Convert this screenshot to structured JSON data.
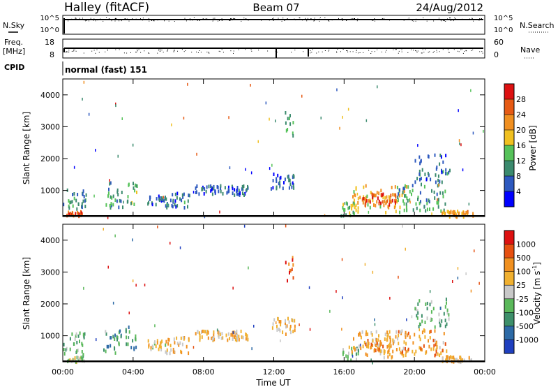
{
  "header": {
    "station": "Halley (fitACF)",
    "beam": "Beam 07",
    "date": "24/Aug/2012"
  },
  "status_panel": {
    "nsky_label": "N.Sky",
    "nsky_ticks": [
      "10^5",
      "10^0"
    ],
    "nsearch_label": "N.Search",
    "nsearch_ticks": [
      "10^5",
      "10^0"
    ],
    "freq_label_1": "Freq.",
    "freq_label_2": "[MHz]",
    "freq_ticks": [
      "18",
      "8"
    ],
    "nave_label": "Nave",
    "nave_ticks": [
      "60",
      "0"
    ],
    "cpid_label": "CPID",
    "cpid_text": "normal (fast) 151"
  },
  "chart_data": [
    {
      "type": "heatmap",
      "name": "power",
      "ylabel": "Slant Range [km]",
      "xlabel": "",
      "x_ticks": [
        "00:00",
        "04:00",
        "08:00",
        "12:00",
        "16:00",
        "20:00",
        "00:00"
      ],
      "xlim_hours": [
        0,
        24
      ],
      "y_ticks": [
        1000,
        2000,
        3000,
        4000
      ],
      "ylim": [
        180,
        4500
      ],
      "colorbar_label": "Power [dB]",
      "colorbar_ticks": [
        "4",
        "8",
        "12",
        "16",
        "20",
        "24",
        "28"
      ],
      "colorbar_colors": [
        "#0000ff",
        "#2d59bf",
        "#3b8a6e",
        "#56c25a",
        "#f0c020",
        "#f08f20",
        "#e65a14",
        "#dd1111"
      ],
      "echo_regions": [
        {
          "t": [
            0.0,
            1.3
          ],
          "r": [
            400,
            1150
          ],
          "level": 0.3
        },
        {
          "t": [
            0.2,
            1.2
          ],
          "r": [
            220,
            380
          ],
          "level": 0.8
        },
        {
          "t": [
            2.3,
            3.4
          ],
          "r": [
            500,
            1300
          ],
          "level": 0.3
        },
        {
          "t": [
            3.5,
            4.2
          ],
          "r": [
            600,
            1350
          ],
          "level": 0.4
        },
        {
          "t": [
            4.8,
            5.8
          ],
          "r": [
            600,
            900
          ],
          "level": 0.2
        },
        {
          "t": [
            5.8,
            7.2
          ],
          "r": [
            500,
            1000
          ],
          "level": 0.25
        },
        {
          "t": [
            7.5,
            10.5
          ],
          "r": [
            900,
            1200
          ],
          "level": 0.2
        },
        {
          "t": [
            11.8,
            13.2
          ],
          "r": [
            1100,
            1600
          ],
          "level": 0.2
        },
        {
          "t": [
            12.6,
            13.1
          ],
          "r": [
            2700,
            3600
          ],
          "level": 0.4
        },
        {
          "t": [
            15.8,
            16.8
          ],
          "r": [
            250,
            700
          ],
          "level": 0.45
        },
        {
          "t": [
            16.4,
            19.6
          ],
          "r": [
            350,
            1200
          ],
          "level": 0.6
        },
        {
          "t": [
            17.0,
            19.0
          ],
          "r": [
            550,
            950
          ],
          "level": 0.85
        },
        {
          "t": [
            19.0,
            21.8
          ],
          "r": [
            400,
            1250
          ],
          "level": 0.35
        },
        {
          "t": [
            21.5,
            23.3
          ],
          "r": [
            220,
            400
          ],
          "level": 0.65
        },
        {
          "t": [
            20.0,
            22.0
          ],
          "r": [
            1300,
            2200
          ],
          "level": 0.25
        }
      ]
    },
    {
      "type": "heatmap",
      "name": "velocity",
      "ylabel": "Slant Range [km]",
      "xlabel": "Time UT",
      "x_ticks": [
        "00:00",
        "04:00",
        "08:00",
        "12:00",
        "16:00",
        "20:00",
        "00:00"
      ],
      "xlim_hours": [
        0,
        24
      ],
      "y_ticks": [
        1000,
        2000,
        3000,
        4000
      ],
      "ylim": [
        180,
        4500
      ],
      "colorbar_label": "Velocity [m s",
      "colorbar_label_sup": "-1",
      "colorbar_label_end": "]",
      "colorbar_ticks": [
        "1000",
        "500",
        "100",
        "25",
        "-25",
        "-100",
        "-500",
        "-1000"
      ],
      "colorbar_colors": [
        "#1f3fbf",
        "#2d6aa6",
        "#3d8f6a",
        "#5ab85a",
        "#c8c8c8",
        "#f0b030",
        "#f09020",
        "#e65010",
        "#dd1111"
      ],
      "echo_regions": [
        {
          "t": [
            0.0,
            1.3
          ],
          "r": [
            400,
            1150
          ],
          "level": 0.35
        },
        {
          "t": [
            0.2,
            1.2
          ],
          "r": [
            220,
            380
          ],
          "level": 0.5
        },
        {
          "t": [
            2.3,
            3.4
          ],
          "r": [
            500,
            1300
          ],
          "level": 0.3
        },
        {
          "t": [
            3.5,
            4.2
          ],
          "r": [
            600,
            1350
          ],
          "level": 0.3
        },
        {
          "t": [
            4.8,
            5.8
          ],
          "r": [
            600,
            900
          ],
          "level": 0.55
        },
        {
          "t": [
            5.8,
            7.2
          ],
          "r": [
            500,
            1000
          ],
          "level": 0.6
        },
        {
          "t": [
            7.5,
            10.5
          ],
          "r": [
            900,
            1200
          ],
          "level": 0.6
        },
        {
          "t": [
            11.8,
            13.2
          ],
          "r": [
            1100,
            1600
          ],
          "level": 0.6
        },
        {
          "t": [
            12.6,
            13.1
          ],
          "r": [
            2700,
            3600
          ],
          "level": 0.85
        },
        {
          "t": [
            15.8,
            16.8
          ],
          "r": [
            250,
            700
          ],
          "level": 0.45
        },
        {
          "t": [
            16.4,
            19.6
          ],
          "r": [
            350,
            1200
          ],
          "level": 0.62
        },
        {
          "t": [
            17.0,
            19.0
          ],
          "r": [
            550,
            950
          ],
          "level": 0.7
        },
        {
          "t": [
            19.0,
            21.8
          ],
          "r": [
            400,
            1250
          ],
          "level": 0.68
        },
        {
          "t": [
            21.5,
            23.3
          ],
          "r": [
            220,
            400
          ],
          "level": 0.6
        },
        {
          "t": [
            20.0,
            22.0
          ],
          "r": [
            1300,
            2200
          ],
          "level": 0.35
        }
      ]
    }
  ]
}
